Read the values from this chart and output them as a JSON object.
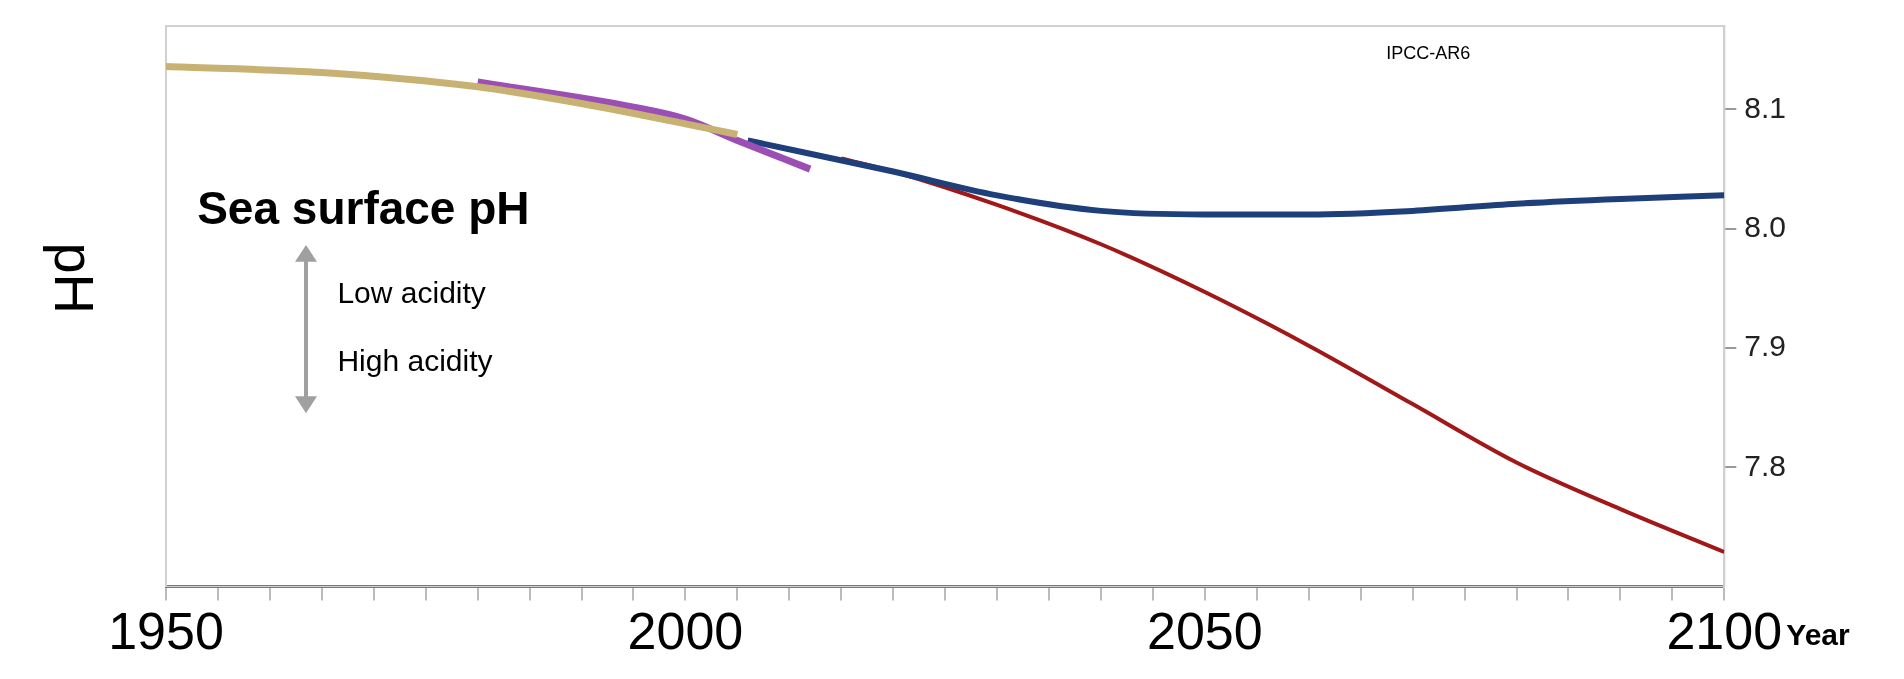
{
  "chart_data": {
    "type": "line",
    "xlabel": "Year",
    "ylabel": "pH",
    "annotations": [
      "Sea surface pH",
      "Low acidity",
      "High acidity",
      "IPCC-AR6"
    ],
    "series": [
      {
        "color": "#c8b273",
        "x": [
          1950,
          1965,
          1980,
          1990,
          2000,
          2005
        ],
        "values": [
          8.136,
          8.131,
          8.119,
          8.105,
          8.088,
          8.079
        ]
      },
      {
        "color": "#9b4fb5",
        "x": [
          1980,
          1995,
          2000,
          2005,
          2012
        ],
        "values": [
          8.123,
          8.102,
          8.092,
          8.074,
          8.05
        ]
      },
      {
        "color": "#1f3f7a",
        "x": [
          2006,
          2020,
          2030,
          2040,
          2050,
          2060,
          2070,
          2080,
          2090,
          2100
        ],
        "values": [
          8.074,
          8.048,
          8.028,
          8.015,
          8.012,
          8.012,
          8.015,
          8.021,
          8.025,
          8.028
        ]
      },
      {
        "color": "#a01818",
        "x": [
          2015,
          2020,
          2030,
          2040,
          2050,
          2060,
          2070,
          2080,
          2090,
          2100
        ],
        "values": [
          8.059,
          8.048,
          8.02,
          7.987,
          7.947,
          7.902,
          7.853,
          7.804,
          7.765,
          7.729
        ]
      }
    ],
    "xlim": [
      1950,
      2100
    ],
    "xticks": [
      1950,
      {
        "value": 1955,
        "label": null
      },
      {
        "value": 1960,
        "label": null
      },
      {
        "value": 1965,
        "label": null
      },
      {
        "value": 1970,
        "label": null
      },
      {
        "value": 1975,
        "label": null
      },
      {
        "value": 1980,
        "label": null
      },
      {
        "value": 1985,
        "label": null
      },
      {
        "value": 1990,
        "label": null
      },
      {
        "value": 1995,
        "label": null
      },
      2000,
      {
        "value": 2005,
        "label": null
      },
      {
        "value": 2010,
        "label": null
      },
      {
        "value": 2015,
        "label": null
      },
      {
        "value": 2020,
        "label": null
      },
      {
        "value": 2025,
        "label": null
      },
      {
        "value": 2030,
        "label": null
      },
      {
        "value": 2035,
        "label": null
      },
      {
        "value": 2040,
        "label": null
      },
      {
        "value": 2045,
        "label": null
      },
      2050,
      {
        "value": 2055,
        "label": null
      },
      {
        "value": 2060,
        "label": null
      },
      {
        "value": 2065,
        "label": null
      },
      {
        "value": 2070,
        "label": null
      },
      {
        "value": 2075,
        "label": null
      },
      {
        "value": 2080,
        "label": null
      },
      {
        "value": 2085,
        "label": null
      },
      {
        "value": 2090,
        "label": null
      },
      {
        "value": 2095,
        "label": null
      },
      2100
    ],
    "ylim": [
      7.7,
      8.17
    ],
    "yticks": [
      7.8,
      7.9,
      {
        "value": 8.0,
        "label": "8.0"
      },
      8.1
    ],
    "grid": false,
    "legend": false,
    "marker": "none",
    "line_style": "solid"
  }
}
